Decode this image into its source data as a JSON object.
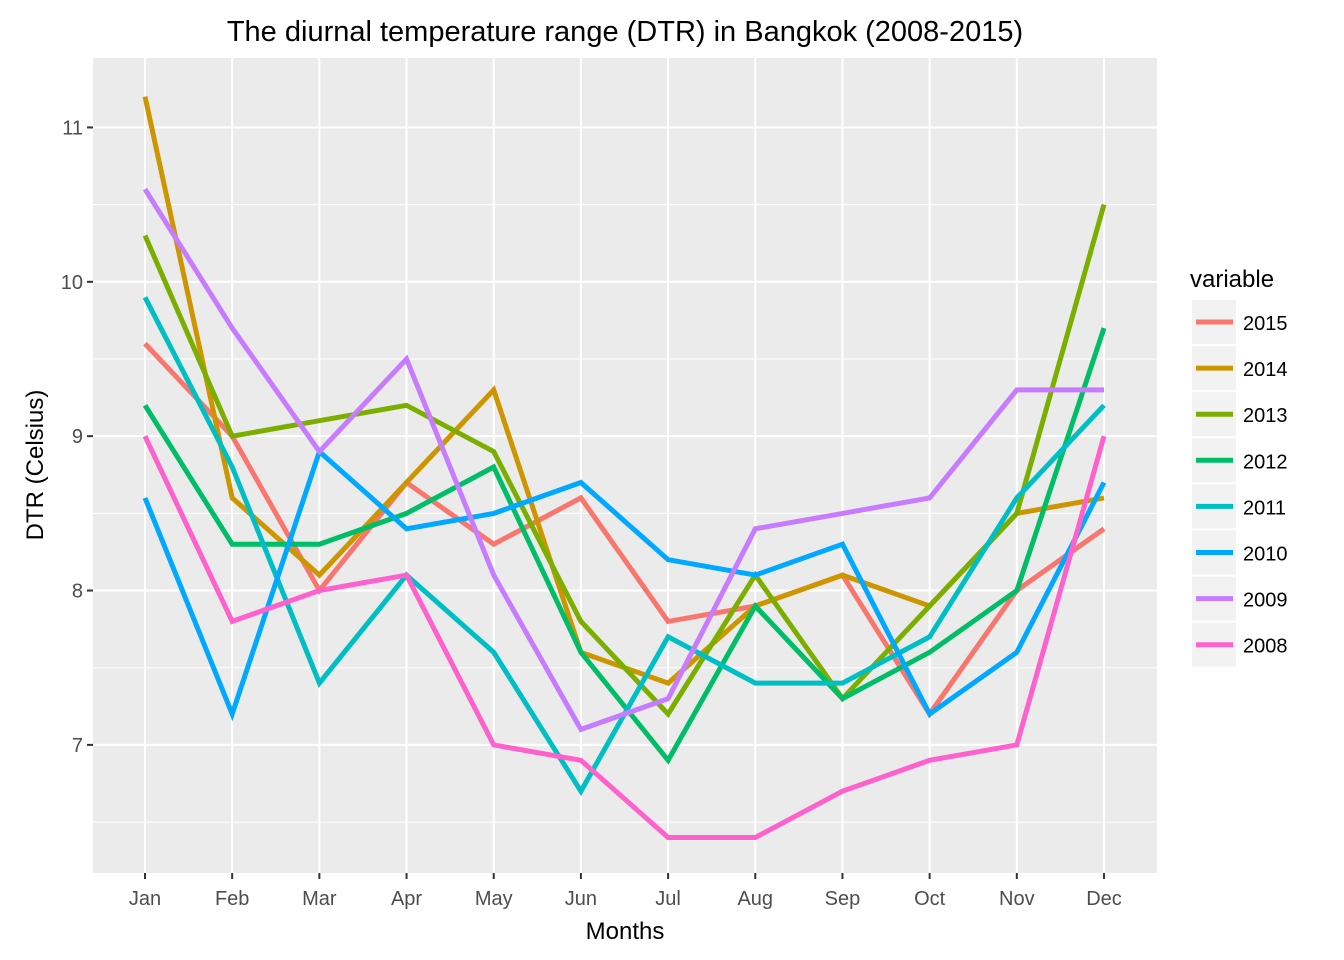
{
  "chart_data": {
    "type": "line",
    "title": "The diurnal temperature range (DTR) in Bangkok (2008-2015)",
    "xlabel": "Months",
    "ylabel": "DTR (Celsius)",
    "categories": [
      "Jan",
      "Feb",
      "Mar",
      "Apr",
      "May",
      "Jun",
      "Jul",
      "Aug",
      "Sep",
      "Oct",
      "Nov",
      "Dec"
    ],
    "ylim": [
      6.17,
      11.45
    ],
    "yticks": [
      7,
      8,
      9,
      10,
      11
    ],
    "ytick_labels": [
      "7",
      "8",
      "9",
      "10",
      "11"
    ],
    "y_minor_gridlines": [
      6.5,
      7.5,
      8.5,
      9.5,
      10.5
    ],
    "grid": true,
    "legend": {
      "title": "variable",
      "position": "right"
    },
    "series": [
      {
        "name": "2015",
        "color": "#F8766D",
        "values": [
          9.6,
          9.0,
          8.0,
          8.7,
          8.3,
          8.6,
          7.8,
          7.9,
          8.1,
          7.2,
          8.0,
          8.4
        ]
      },
      {
        "name": "2014",
        "color": "#CD9600",
        "values": [
          11.2,
          8.6,
          8.1,
          8.7,
          9.3,
          7.6,
          7.4,
          7.9,
          8.1,
          7.9,
          8.5,
          8.6
        ]
      },
      {
        "name": "2013",
        "color": "#7CAE00",
        "values": [
          10.3,
          9.0,
          9.1,
          9.2,
          8.9,
          7.8,
          7.2,
          8.1,
          7.3,
          7.9,
          8.5,
          10.5
        ]
      },
      {
        "name": "2012",
        "color": "#00BE67",
        "values": [
          9.2,
          8.3,
          8.3,
          8.5,
          8.8,
          7.6,
          6.9,
          7.9,
          7.3,
          7.6,
          8.0,
          9.7
        ]
      },
      {
        "name": "2011",
        "color": "#00BFC4",
        "values": [
          9.9,
          8.8,
          7.4,
          8.1,
          7.6,
          6.7,
          7.7,
          7.4,
          7.4,
          7.7,
          8.6,
          9.2
        ]
      },
      {
        "name": "2010",
        "color": "#00A9FF",
        "values": [
          8.6,
          7.2,
          8.9,
          8.4,
          8.5,
          8.7,
          8.2,
          8.1,
          8.3,
          7.2,
          7.6,
          8.7
        ]
      },
      {
        "name": "2009",
        "color": "#C77CFF",
        "values": [
          10.6,
          9.7,
          8.9,
          9.5,
          8.1,
          7.1,
          7.3,
          8.4,
          8.5,
          8.6,
          9.3,
          9.3
        ]
      },
      {
        "name": "2008",
        "color": "#FF61CC",
        "values": [
          9.0,
          7.8,
          8.0,
          8.1,
          7.0,
          6.9,
          6.4,
          6.4,
          6.7,
          6.9,
          7.0,
          9.0
        ]
      }
    ]
  }
}
